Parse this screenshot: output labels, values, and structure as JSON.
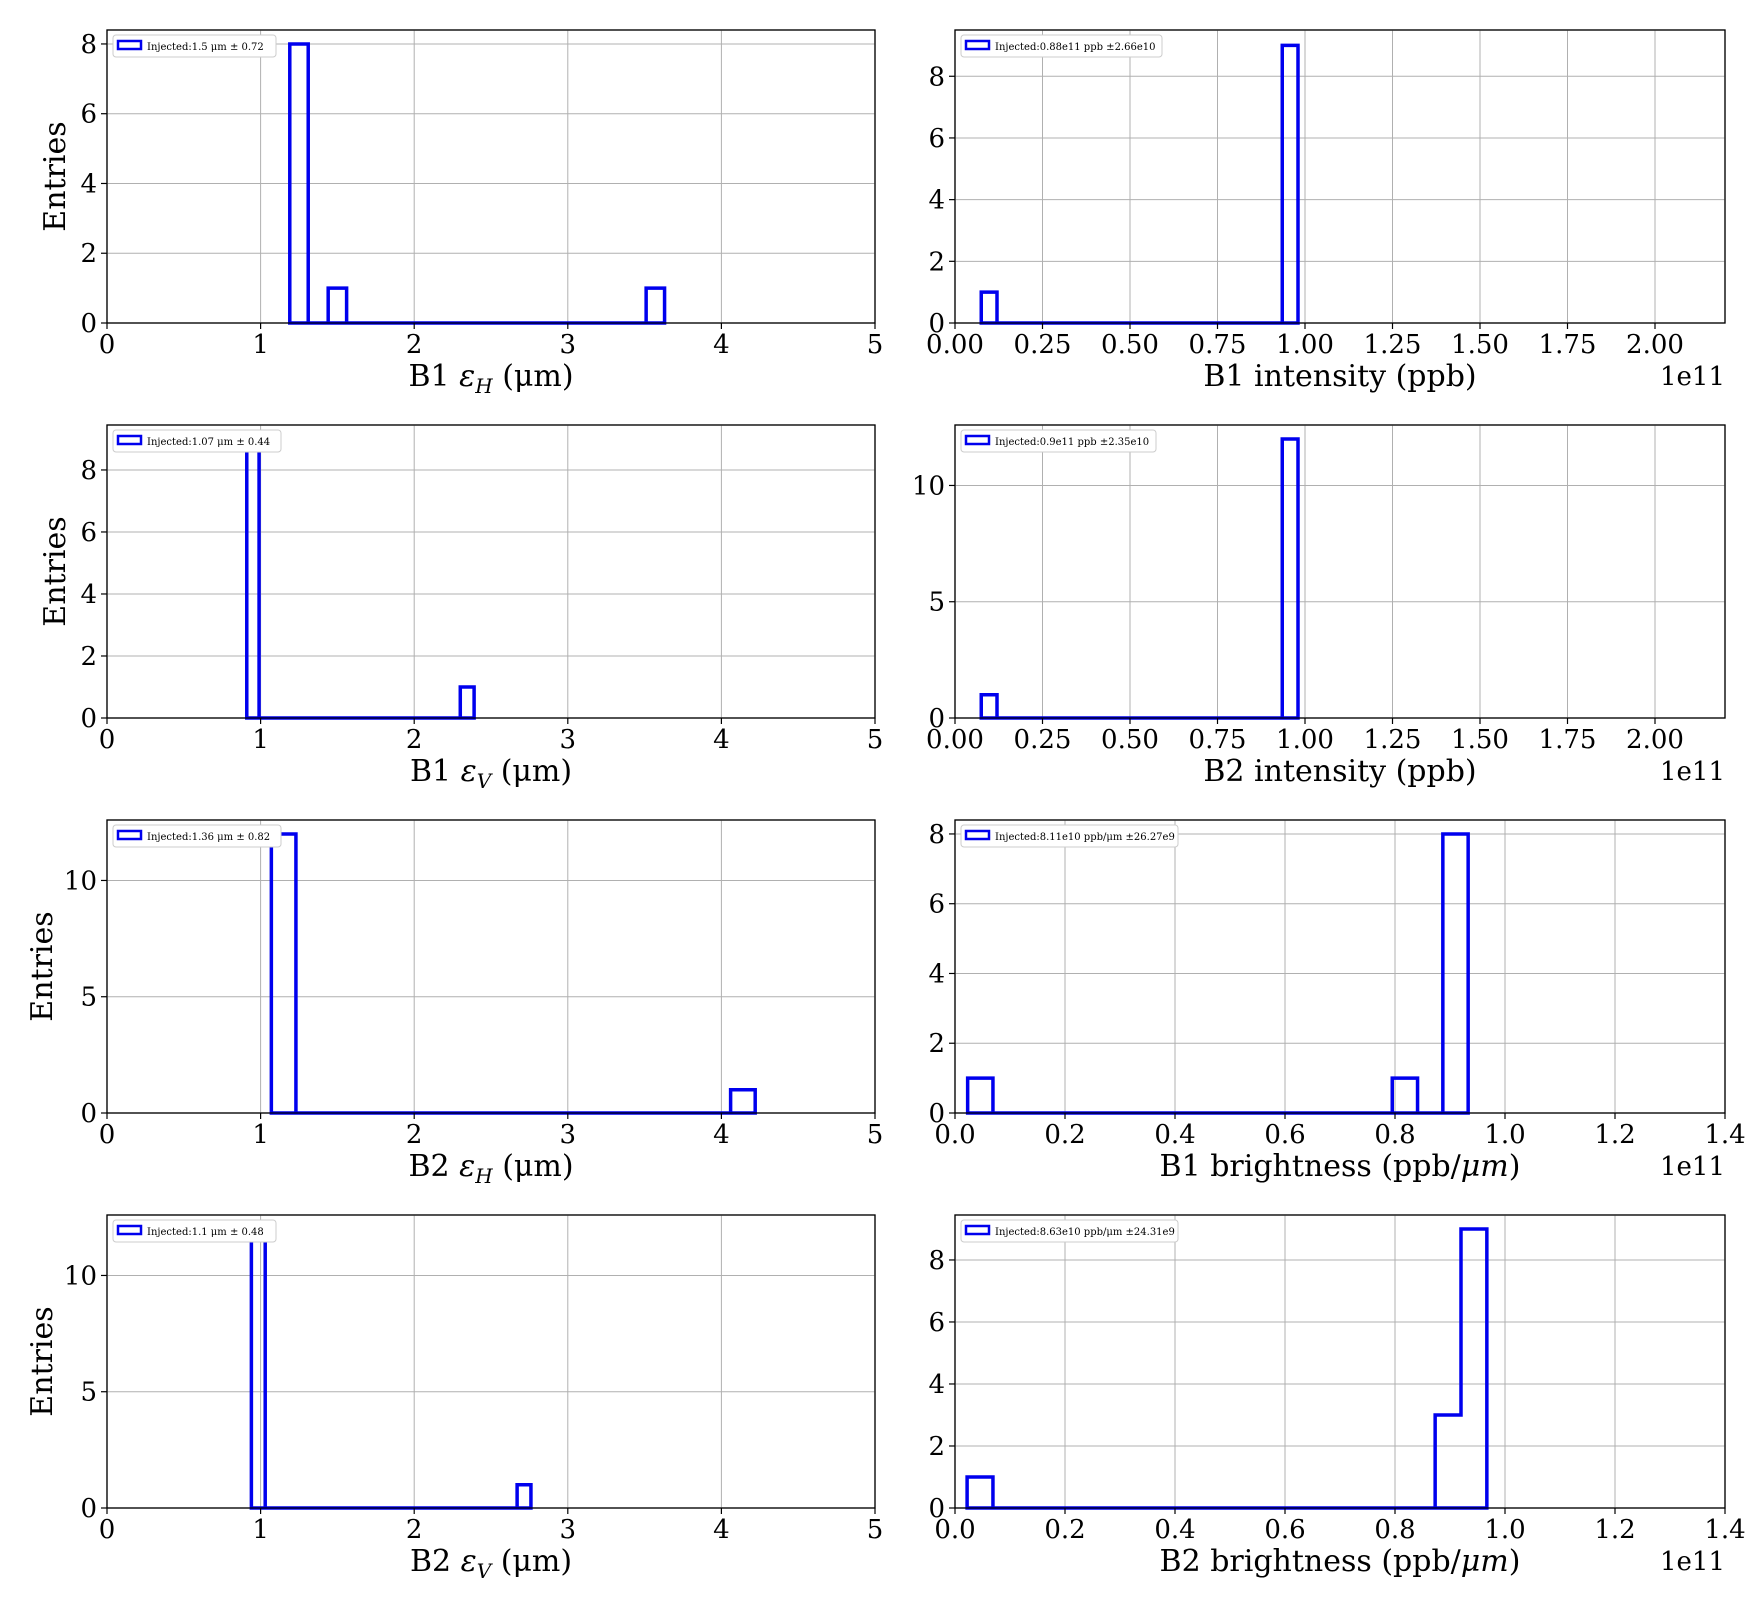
{
  "figure": {
    "line_color": "#0000ee",
    "grid_color": "#b0b0b0"
  },
  "chart_data": [
    {
      "type": "histogram",
      "xlabel_text": "B1 ",
      "xlabel_sym": "ε",
      "xlabel_sub": "H",
      "xlabel_unit": " (μm)",
      "ylabel": "Entries",
      "legend": "Injected:1.5 μm ± 0.72",
      "legend_placement": "top-left",
      "xlim": [
        0,
        5
      ],
      "ylim": [
        0,
        8.4
      ],
      "xticks": [
        0,
        1,
        2,
        3,
        4,
        5
      ],
      "xtick_labels": [
        "0",
        "1",
        "2",
        "3",
        "4",
        "5"
      ],
      "yticks": [
        0,
        2,
        4,
        6,
        8
      ],
      "ytick_labels": [
        "0",
        "2",
        "4",
        "6",
        "8"
      ],
      "offset_label": "",
      "grid": true,
      "bins": [
        {
          "x0": 1.19,
          "x1": 1.31,
          "count": 8
        },
        {
          "x0": 1.31,
          "x1": 1.44,
          "count": 0
        },
        {
          "x0": 1.44,
          "x1": 1.56,
          "count": 1
        },
        {
          "x0": 1.56,
          "x1": 3.51,
          "count": 0
        },
        {
          "x0": 3.51,
          "x1": 3.63,
          "count": 1
        }
      ]
    },
    {
      "type": "histogram",
      "xlabel_text": "B1 intensity (ppb)",
      "xlabel_sym": "",
      "xlabel_sub": "",
      "xlabel_unit": "",
      "ylabel": "",
      "legend": "Injected:0.88e11 ppb ±2.66e10",
      "legend_placement": "top-left",
      "xlim": [
        0,
        2.2
      ],
      "ylim": [
        0,
        9.5
      ],
      "xticks": [
        0,
        0.25,
        0.5,
        0.75,
        1.0,
        1.25,
        1.5,
        1.75,
        2.0
      ],
      "xtick_labels": [
        "0.00",
        "0.25",
        "0.50",
        "0.75",
        "1.00",
        "1.25",
        "1.50",
        "1.75",
        "2.00"
      ],
      "yticks": [
        0,
        2,
        4,
        6,
        8
      ],
      "ytick_labels": [
        "0",
        "2",
        "4",
        "6",
        "8"
      ],
      "offset_label": "1e11",
      "grid": true,
      "bins": [
        {
          "x0": 0.075,
          "x1": 0.12,
          "count": 1
        },
        {
          "x0": 0.12,
          "x1": 0.935,
          "count": 0
        },
        {
          "x0": 0.935,
          "x1": 0.98,
          "count": 9
        }
      ]
    },
    {
      "type": "histogram",
      "xlabel_text": "B1 ",
      "xlabel_sym": "ε",
      "xlabel_sub": "V",
      "xlabel_unit": " (μm)",
      "ylabel": "Entries",
      "legend": "Injected:1.07 μm ± 0.44",
      "legend_placement": "top-left",
      "xlim": [
        0,
        5
      ],
      "ylim": [
        0,
        9.45
      ],
      "xticks": [
        0,
        1,
        2,
        3,
        4,
        5
      ],
      "xtick_labels": [
        "0",
        "1",
        "2",
        "3",
        "4",
        "5"
      ],
      "yticks": [
        0,
        2,
        4,
        6,
        8
      ],
      "ytick_labels": [
        "0",
        "2",
        "4",
        "6",
        "8"
      ],
      "offset_label": "",
      "grid": true,
      "bins": [
        {
          "x0": 0.91,
          "x1": 0.99,
          "count": 9
        },
        {
          "x0": 0.99,
          "x1": 2.3,
          "count": 0
        },
        {
          "x0": 2.3,
          "x1": 2.39,
          "count": 1
        }
      ]
    },
    {
      "type": "histogram",
      "xlabel_text": "B2 intensity (ppb)",
      "xlabel_sym": "",
      "xlabel_sub": "",
      "xlabel_unit": "",
      "ylabel": "",
      "legend": "Injected:0.9e11 ppb ±2.35e10",
      "legend_placement": "top-left",
      "xlim": [
        0,
        2.2
      ],
      "ylim": [
        0,
        12.6
      ],
      "xticks": [
        0,
        0.25,
        0.5,
        0.75,
        1.0,
        1.25,
        1.5,
        1.75,
        2.0
      ],
      "xtick_labels": [
        "0.00",
        "0.25",
        "0.50",
        "0.75",
        "1.00",
        "1.25",
        "1.50",
        "1.75",
        "2.00"
      ],
      "yticks": [
        0,
        5,
        10
      ],
      "ytick_labels": [
        "0",
        "5",
        "10"
      ],
      "offset_label": "1e11",
      "grid": true,
      "bins": [
        {
          "x0": 0.075,
          "x1": 0.12,
          "count": 1
        },
        {
          "x0": 0.12,
          "x1": 0.935,
          "count": 0
        },
        {
          "x0": 0.935,
          "x1": 0.98,
          "count": 12
        }
      ]
    },
    {
      "type": "histogram",
      "xlabel_text": "B2 ",
      "xlabel_sym": "ε",
      "xlabel_sub": "H",
      "xlabel_unit": " (μm)",
      "ylabel": "Entries",
      "legend": "Injected:1.36 μm ± 0.82",
      "legend_placement": "top-left",
      "xlim": [
        0,
        5
      ],
      "ylim": [
        0,
        12.6
      ],
      "xticks": [
        0,
        1,
        2,
        3,
        4,
        5
      ],
      "xtick_labels": [
        "0",
        "1",
        "2",
        "3",
        "4",
        "5"
      ],
      "yticks": [
        0,
        5,
        10
      ],
      "ytick_labels": [
        "0",
        "5",
        "10"
      ],
      "offset_label": "",
      "grid": true,
      "bins": [
        {
          "x0": 1.07,
          "x1": 1.23,
          "count": 12
        },
        {
          "x0": 1.23,
          "x1": 4.06,
          "count": 0
        },
        {
          "x0": 4.06,
          "x1": 4.22,
          "count": 1
        }
      ]
    },
    {
      "type": "histogram",
      "xlabel_text": "B1 brightness (ppb/",
      "xlabel_sym": "μm",
      "xlabel_sub": "",
      "xlabel_unit": ")",
      "ylabel": "",
      "legend": "Injected:8.11e10 ppb/μm ±26.27e9",
      "legend_placement": "top-left",
      "xlim": [
        0,
        1.4
      ],
      "ylim": [
        0,
        8.4
      ],
      "xticks": [
        0,
        0.2,
        0.4,
        0.6,
        0.8,
        1.0,
        1.2,
        1.4
      ],
      "xtick_labels": [
        "0.0",
        "0.2",
        "0.4",
        "0.6",
        "0.8",
        "1.0",
        "1.2",
        "1.4"
      ],
      "yticks": [
        0,
        2,
        4,
        6,
        8
      ],
      "ytick_labels": [
        "0",
        "2",
        "4",
        "6",
        "8"
      ],
      "offset_label": "1e11",
      "grid": true,
      "bins": [
        {
          "x0": 0.023,
          "x1": 0.069,
          "count": 1
        },
        {
          "x0": 0.069,
          "x1": 0.795,
          "count": 0
        },
        {
          "x0": 0.795,
          "x1": 0.841,
          "count": 1
        },
        {
          "x0": 0.841,
          "x1": 0.887,
          "count": 0
        },
        {
          "x0": 0.887,
          "x1": 0.933,
          "count": 8
        }
      ]
    },
    {
      "type": "histogram",
      "xlabel_text": "B2 ",
      "xlabel_sym": "ε",
      "xlabel_sub": "V",
      "xlabel_unit": " (μm)",
      "ylabel": "Entries",
      "legend": "Injected:1.1 μm ± 0.48",
      "legend_placement": "top-left",
      "xlim": [
        0,
        5
      ],
      "ylim": [
        0,
        12.6
      ],
      "xticks": [
        0,
        1,
        2,
        3,
        4,
        5
      ],
      "xtick_labels": [
        "0",
        "1",
        "2",
        "3",
        "4",
        "5"
      ],
      "yticks": [
        0,
        5,
        10
      ],
      "ytick_labels": [
        "0",
        "5",
        "10"
      ],
      "offset_label": "",
      "grid": true,
      "bins": [
        {
          "x0": 0.94,
          "x1": 1.03,
          "count": 12
        },
        {
          "x0": 1.03,
          "x1": 2.67,
          "count": 0
        },
        {
          "x0": 2.67,
          "x1": 2.76,
          "count": 1
        }
      ]
    },
    {
      "type": "histogram",
      "xlabel_text": "B2 brightness (ppb/",
      "xlabel_sym": "μm",
      "xlabel_sub": "",
      "xlabel_unit": ")",
      "ylabel": "",
      "legend": "Injected:8.63e10 ppb/μm ±24.31e9",
      "legend_placement": "top-left",
      "xlim": [
        0,
        1.4
      ],
      "ylim": [
        0,
        9.45
      ],
      "xticks": [
        0,
        0.2,
        0.4,
        0.6,
        0.8,
        1.0,
        1.2,
        1.4
      ],
      "xtick_labels": [
        "0.0",
        "0.2",
        "0.4",
        "0.6",
        "0.8",
        "1.0",
        "1.2",
        "1.4"
      ],
      "yticks": [
        0,
        2,
        4,
        6,
        8
      ],
      "ytick_labels": [
        "0",
        "2",
        "4",
        "6",
        "8"
      ],
      "offset_label": "1e11",
      "grid": true,
      "bins": [
        {
          "x0": 0.022,
          "x1": 0.069,
          "count": 1
        },
        {
          "x0": 0.069,
          "x1": 0.873,
          "count": 0
        },
        {
          "x0": 0.873,
          "x1": 0.92,
          "count": 3
        },
        {
          "x0": 0.92,
          "x1": 0.967,
          "count": 9
        }
      ]
    }
  ]
}
